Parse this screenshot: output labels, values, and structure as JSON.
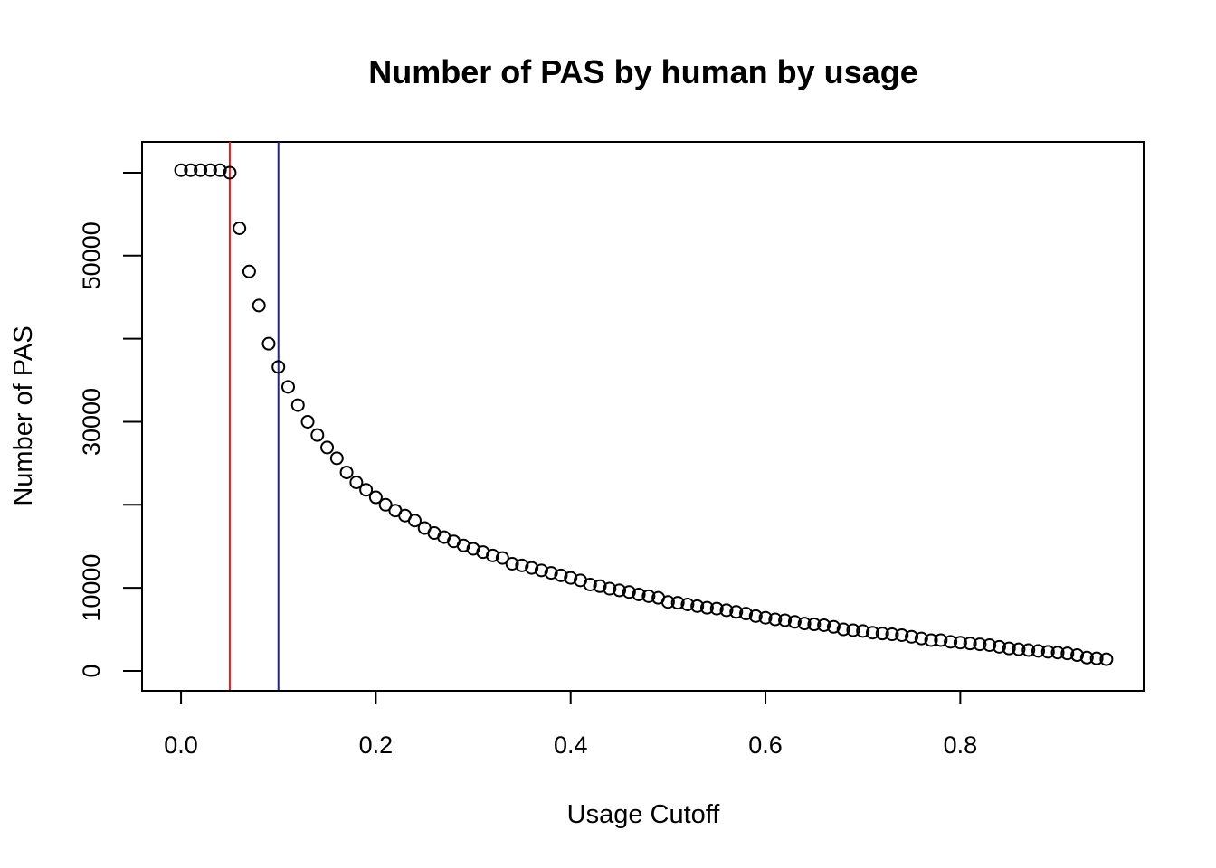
{
  "chart_data": {
    "type": "scatter",
    "title": "Number of PAS by human by usage",
    "xlabel": "Usage Cutoff",
    "ylabel": "Number of PAS",
    "xlim": [
      -0.04,
      0.9882
    ],
    "ylim": [
      -2400,
      63700
    ],
    "x_ticks": [
      0.0,
      0.2,
      0.4,
      0.6,
      0.8
    ],
    "x_tick_labels": [
      "0.0",
      "0.2",
      "0.4",
      "0.6",
      "0.8"
    ],
    "y_ticks": [
      0,
      10000,
      20000,
      30000,
      40000,
      50000,
      60000
    ],
    "y_tick_labels": [
      "0",
      "10000",
      "",
      "30000",
      "",
      "50000",
      ""
    ],
    "grid": false,
    "marker": "open-circle",
    "reference_lines": [
      {
        "x": 0.05,
        "color": "#e41a1c"
      },
      {
        "x": 0.1,
        "color": "#1f1fb4"
      }
    ],
    "x": [
      0.0,
      0.01,
      0.02,
      0.03,
      0.04,
      0.05,
      0.06,
      0.07,
      0.08,
      0.09,
      0.1,
      0.11,
      0.12,
      0.13,
      0.14,
      0.15,
      0.16,
      0.17,
      0.18,
      0.19,
      0.2,
      0.21,
      0.22,
      0.23,
      0.24,
      0.25,
      0.26,
      0.27,
      0.28,
      0.29,
      0.3,
      0.31,
      0.32,
      0.33,
      0.34,
      0.35,
      0.36,
      0.37,
      0.38,
      0.39,
      0.4,
      0.41,
      0.42,
      0.43,
      0.44,
      0.45,
      0.46,
      0.47,
      0.48,
      0.49,
      0.5,
      0.51,
      0.52,
      0.53,
      0.54,
      0.55,
      0.56,
      0.57,
      0.58,
      0.59,
      0.6,
      0.61,
      0.62,
      0.63,
      0.64,
      0.65,
      0.66,
      0.67,
      0.68,
      0.69,
      0.7,
      0.71,
      0.72,
      0.73,
      0.74,
      0.75,
      0.76,
      0.77,
      0.78,
      0.79,
      0.8,
      0.81,
      0.82,
      0.83,
      0.84,
      0.85,
      0.86,
      0.87,
      0.88,
      0.89,
      0.9,
      0.91,
      0.92,
      0.93,
      0.94,
      0.95
    ],
    "y": [
      60300,
      60300,
      60300,
      60300,
      60300,
      60000,
      53300,
      48100,
      44000,
      39400,
      36600,
      34200,
      32000,
      30000,
      28400,
      26900,
      25600,
      23900,
      22700,
      21800,
      20900,
      20000,
      19300,
      18700,
      18100,
      17200,
      16600,
      16100,
      15600,
      15100,
      14700,
      14300,
      13900,
      13600,
      12900,
      12700,
      12400,
      12100,
      11800,
      11500,
      11200,
      10900,
      10400,
      10200,
      9900,
      9700,
      9500,
      9200,
      9000,
      8800,
      8300,
      8200,
      8000,
      7800,
      7600,
      7500,
      7300,
      7100,
      6900,
      6600,
      6400,
      6200,
      6100,
      5900,
      5700,
      5600,
      5500,
      5300,
      5000,
      4900,
      4800,
      4600,
      4500,
      4400,
      4300,
      4100,
      3900,
      3700,
      3700,
      3500,
      3400,
      3300,
      3200,
      3100,
      2900,
      2700,
      2600,
      2500,
      2400,
      2300,
      2200,
      2100,
      1900,
      1600,
      1500,
      1400
    ]
  }
}
